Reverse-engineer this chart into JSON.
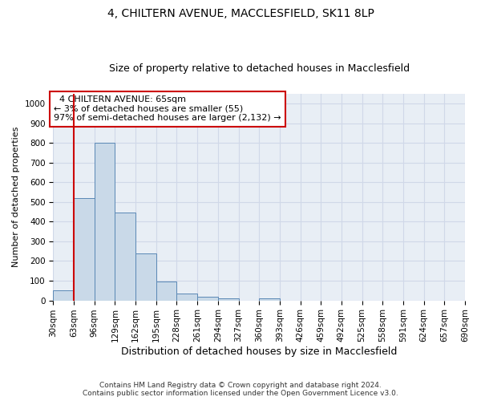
{
  "title": "4, CHILTERN AVENUE, MACCLESFIELD, SK11 8LP",
  "subtitle": "Size of property relative to detached houses in Macclesfield",
  "xlabel": "Distribution of detached houses by size in Macclesfield",
  "ylabel": "Number of detached properties",
  "footer_line1": "Contains HM Land Registry data © Crown copyright and database right 2024.",
  "footer_line2": "Contains public sector information licensed under the Open Government Licence v3.0.",
  "bins": [
    30,
    63,
    96,
    129,
    162,
    195,
    228,
    261,
    294,
    327,
    360,
    393,
    426,
    459,
    492,
    525,
    558,
    591,
    624,
    657,
    690
  ],
  "bar_values": [
    50,
    520,
    800,
    445,
    240,
    95,
    33,
    18,
    10,
    0,
    10,
    0,
    0,
    0,
    0,
    0,
    0,
    0,
    0,
    0
  ],
  "bar_color": "#c9d9e8",
  "bar_edge_color": "#5a88b5",
  "ylim": [
    0,
    1050
  ],
  "yticks": [
    0,
    100,
    200,
    300,
    400,
    500,
    600,
    700,
    800,
    900,
    1000
  ],
  "property_size": 65,
  "vline_x": 63,
  "annotation_text": "  4 CHILTERN AVENUE: 65sqm\n← 3% of detached houses are smaller (55)\n97% of semi-detached houses are larger (2,132) →",
  "annotation_box_color": "#ffffff",
  "annotation_box_edge_color": "#cc0000",
  "vline_color": "#cc0000",
  "grid_color": "#d0d8e8",
  "bg_color": "#e8eef5",
  "title_fontsize": 10,
  "subtitle_fontsize": 9,
  "ylabel_fontsize": 8,
  "xlabel_fontsize": 9,
  "tick_fontsize": 7.5,
  "annotation_fontsize": 8
}
